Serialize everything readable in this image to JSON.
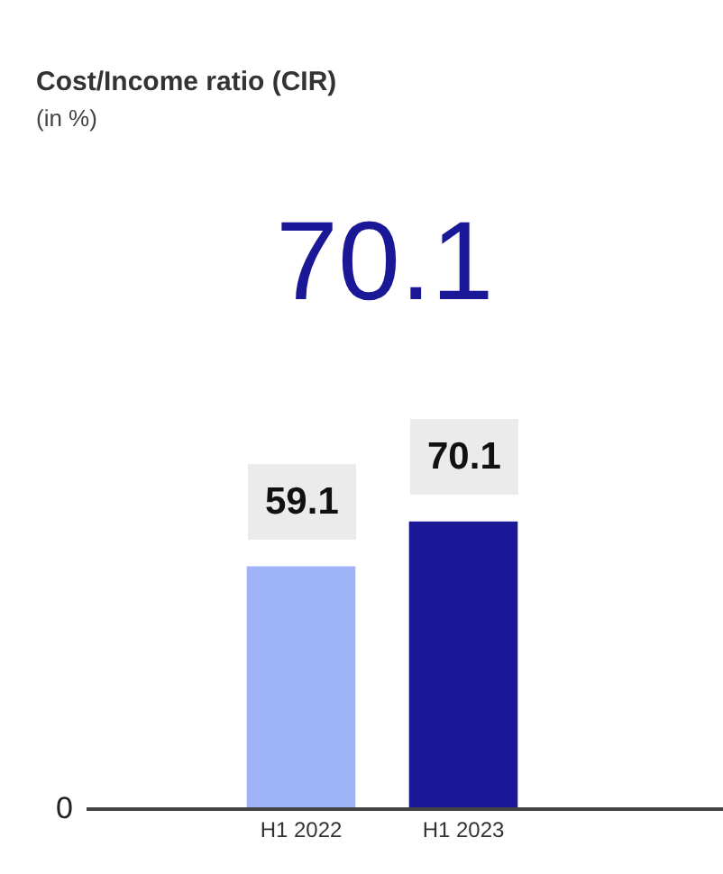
{
  "chart_data": {
    "type": "bar",
    "title": "Cost/Income ratio (CIR)",
    "subtitle": "(in %)",
    "annotations": [
      "70.1",
      "0"
    ],
    "categories": [
      "H1 2022",
      "H1 2023"
    ],
    "values": [
      59.1,
      70.1
    ],
    "colors": [
      "#9fb4f8",
      "#1a1896"
    ],
    "data_labels": true
  }
}
